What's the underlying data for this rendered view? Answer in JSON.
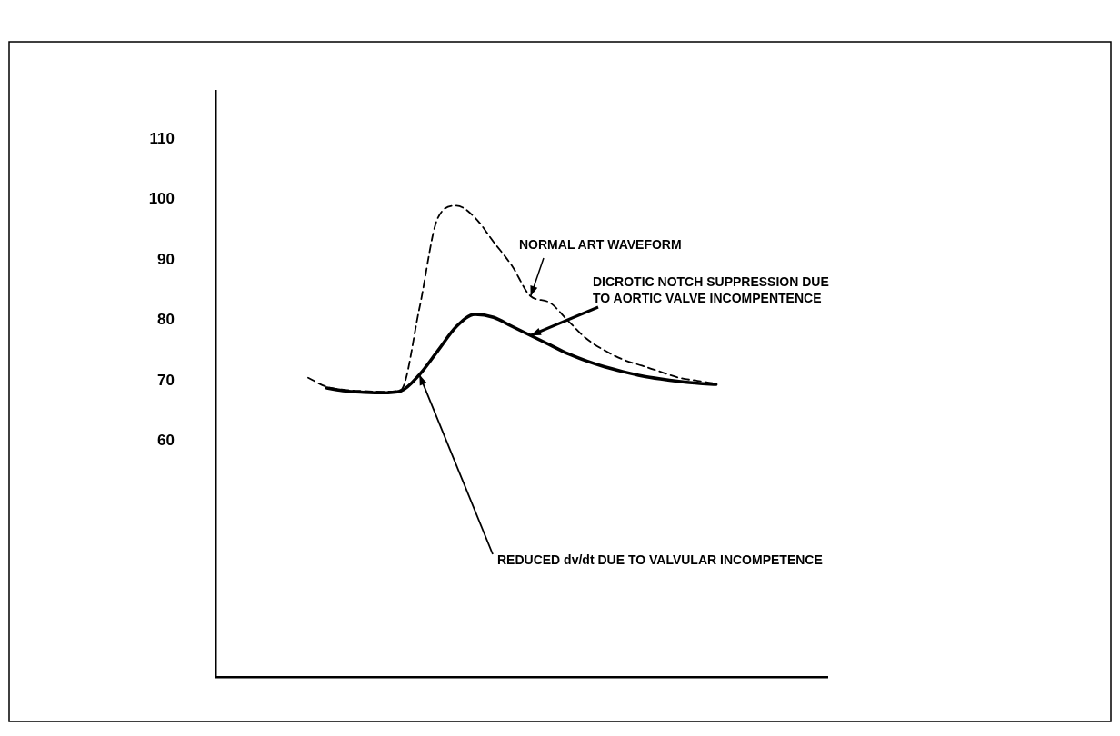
{
  "chart_data": {
    "type": "line",
    "categories": [
      null,
      null,
      null,
      null,
      null,
      null,
      null,
      null,
      null,
      null,
      null,
      null,
      null,
      null,
      null,
      null,
      null,
      null,
      null,
      null,
      null,
      null,
      null,
      null,
      null,
      null,
      null,
      null,
      null,
      null,
      null,
      null,
      null,
      null
    ],
    "series": [
      {
        "color": "#000000",
        "line_style": "dashed",
        "values": [
          null,
          null,
          null,
          null,
          null,
          70.5,
          69,
          68.5,
          68.3,
          68.2,
          68.5,
          82,
          97,
          99,
          97,
          93,
          89,
          84,
          83,
          80,
          77,
          75,
          73.5,
          72.5,
          71.5,
          70.5,
          70,
          69.5,
          null,
          null,
          null,
          null,
          null,
          null
        ]
      },
      {
        "color": "#000000",
        "line_style": "solid",
        "values": [
          null,
          null,
          null,
          null,
          null,
          null,
          68.8,
          68.3,
          68.1,
          68,
          68.3,
          71,
          75,
          79,
          81,
          80.5,
          79,
          77.5,
          76,
          74.5,
          73.3,
          72.3,
          71.5,
          70.8,
          70.3,
          69.9,
          69.6,
          69.4,
          null,
          null,
          null,
          null,
          null,
          null
        ]
      }
    ],
    "ylim": [
      21,
      118
    ],
    "yticks": [
      60,
      70,
      80,
      90,
      100,
      110
    ],
    "grid": false,
    "legend": false,
    "marker": "none",
    "tick_labels": "y",
    "annotations": [
      "NORMAL ART WAVEFORM",
      "DICROTIC NOTCH SUPPRESSION DUE\nTO AORTIC VALVE INCOMPENTENCE",
      "REDUCED dv/dt DUE TO VALVULAR INCOMPETENCE"
    ]
  }
}
